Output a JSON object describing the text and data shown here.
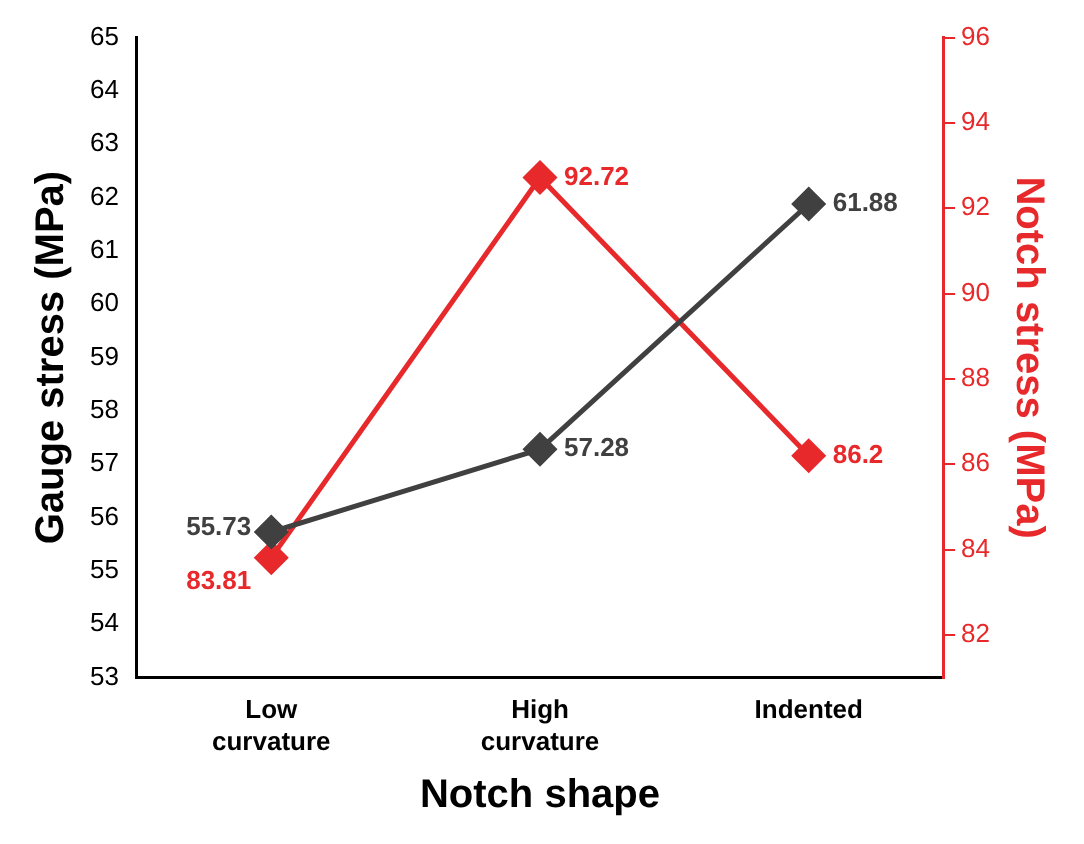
{
  "chart_data": {
    "type": "line",
    "xlabel": "Notch shape",
    "ylabel": "Gauge stress (MPa)",
    "y2label": "Notch stress (MPa)",
    "categories": [
      "Low curvature",
      "High curvature",
      "Indented"
    ],
    "series": [
      {
        "color": "#404040",
        "values": [
          55.73,
          57.28,
          61.88
        ]
      },
      {
        "color": "#e8292b",
        "values": [
          83.81,
          92.72,
          86.2
        ],
        "axis": "y2"
      }
    ],
    "ylim": [
      53,
      65
    ],
    "yticks": [
      53,
      54,
      55,
      56,
      57,
      58,
      59,
      60,
      61,
      62,
      63,
      64,
      65
    ],
    "y2lim": [
      81,
      96
    ],
    "y2ticks": [
      82,
      84,
      86,
      88,
      90,
      92,
      94,
      96
    ],
    "marker": "diamond",
    "data_labels": true
  }
}
